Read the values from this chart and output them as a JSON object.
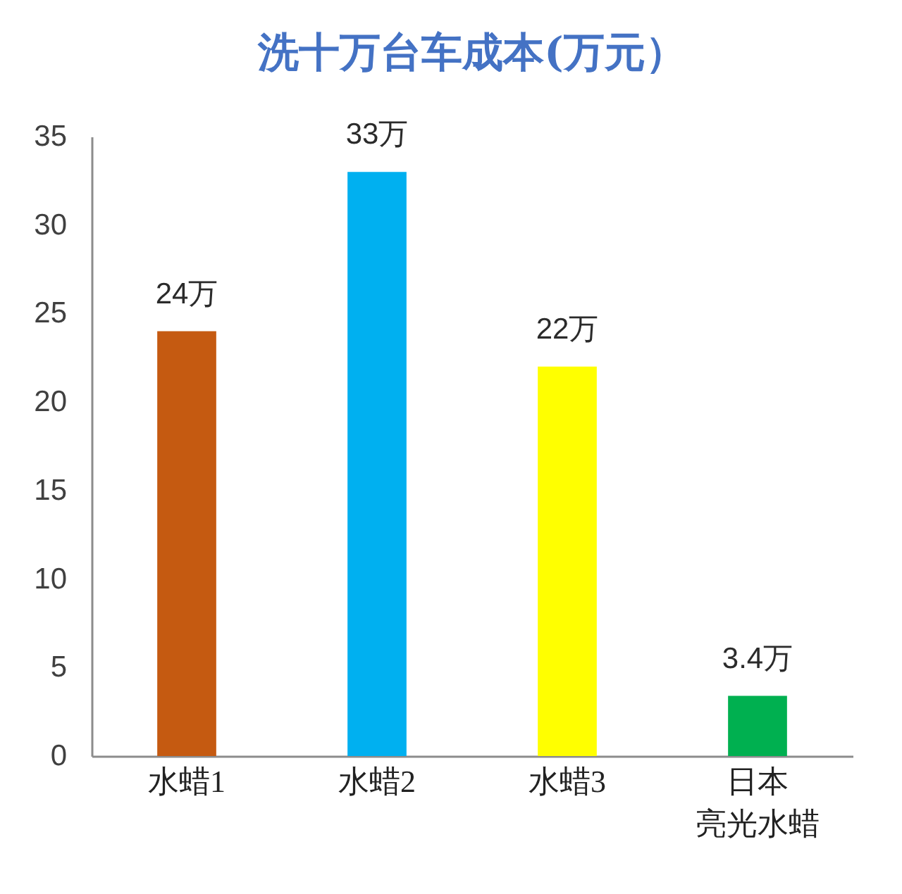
{
  "chart_data": {
    "type": "bar",
    "title": "洗十万台车成本(万元）",
    "categories": [
      "水蜡1",
      "水蜡2",
      "水蜡3",
      "日本亮光水蜡"
    ],
    "values": [
      24,
      33,
      22,
      3.4
    ],
    "colors": [
      "#c55a11",
      "#00b0f0",
      "#ffff00",
      "#00b050"
    ],
    "value_labels": [
      "24万",
      "33万",
      "22万",
      "3.4万"
    ],
    "ylim": [
      0,
      35
    ],
    "yticks": [
      0,
      5,
      10,
      15,
      20,
      25,
      30,
      35
    ]
  }
}
